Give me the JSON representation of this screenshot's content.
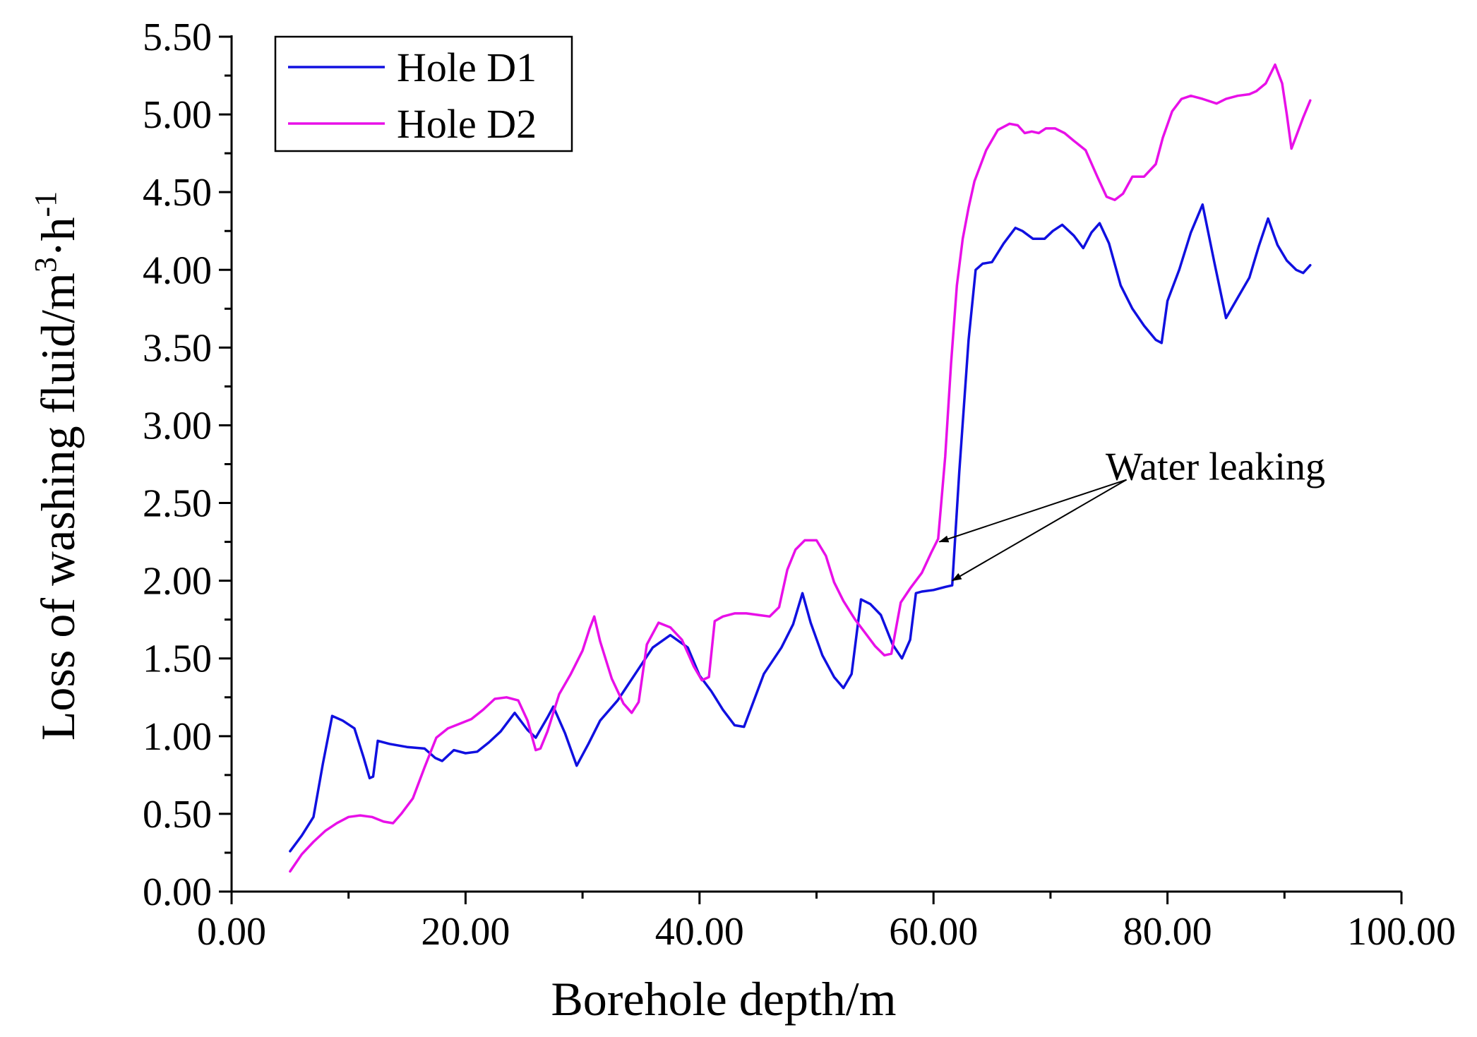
{
  "chart_data": {
    "type": "line",
    "title": "",
    "xlabel": "Borehole depth/m",
    "ylabel": "Loss of washing fluid/m",
    "ylabel_unit_sup1": "3",
    "ylabel_unit_mid": "·h",
    "ylabel_unit_sup2": "-1",
    "xlim": [
      0,
      100
    ],
    "ylim": [
      0,
      5.5
    ],
    "xticks": [
      0,
      20,
      40,
      60,
      80,
      100
    ],
    "xtick_labels": [
      "0.00",
      "20.00",
      "40.00",
      "60.00",
      "80.00",
      "100.00"
    ],
    "yticks": [
      0,
      0.5,
      1,
      1.5,
      2,
      2.5,
      3,
      3.5,
      4,
      4.5,
      5,
      5.5
    ],
    "ytick_labels": [
      "0.00",
      "0.50",
      "1.00",
      "1.50",
      "2.00",
      "2.50",
      "3.00",
      "3.50",
      "4.00",
      "4.50",
      "5.00",
      "5.50"
    ],
    "grid": false,
    "legend_position": "top-left",
    "series": [
      {
        "name": "Hole D1",
        "color": "#1010e0",
        "x": [
          5,
          6,
          7,
          7.8,
          8.6,
          9.5,
          10.5,
          11.3,
          11.8,
          12.1,
          12.5,
          13.5,
          15,
          16.5,
          17.4,
          18,
          19,
          20,
          21,
          22,
          23,
          24.2,
          25.3,
          26,
          27,
          27.5,
          28.5,
          29.5,
          30.5,
          31.5,
          33,
          34.5,
          36,
          37.5,
          39,
          40,
          41,
          42,
          43,
          43.8,
          44.5,
          45.5,
          47,
          48,
          48.8,
          49.5,
          50.5,
          51.5,
          52.3,
          53,
          53.8,
          54.6,
          55.5,
          56.5,
          57.3,
          58,
          58.5,
          59,
          60,
          61,
          61.6,
          62.2,
          63,
          63.6,
          64.2,
          65,
          66,
          67,
          67.6,
          68.5,
          69.5,
          70.2,
          71,
          72,
          72.8,
          73.5,
          74.2,
          75,
          76,
          77,
          78,
          79,
          79.5,
          80,
          81,
          82,
          83,
          84,
          85,
          86,
          87,
          87.8,
          88.6,
          89.4,
          90.2,
          91,
          91.6,
          92.2
        ],
        "y": [
          0.26,
          0.36,
          0.48,
          0.82,
          1.13,
          1.1,
          1.05,
          0.86,
          0.73,
          0.74,
          0.97,
          0.95,
          0.93,
          0.92,
          0.86,
          0.84,
          0.91,
          0.89,
          0.9,
          0.96,
          1.03,
          1.15,
          1.04,
          0.99,
          1.12,
          1.19,
          1.02,
          0.81,
          0.95,
          1.1,
          1.23,
          1.4,
          1.57,
          1.65,
          1.57,
          1.39,
          1.29,
          1.17,
          1.07,
          1.06,
          1.2,
          1.4,
          1.57,
          1.72,
          1.92,
          1.73,
          1.52,
          1.38,
          1.31,
          1.4,
          1.88,
          1.85,
          1.78,
          1.59,
          1.5,
          1.62,
          1.92,
          1.93,
          1.94,
          1.96,
          1.97,
          2.7,
          3.55,
          4.0,
          4.04,
          4.05,
          4.17,
          4.27,
          4.25,
          4.2,
          4.2,
          4.25,
          4.29,
          4.22,
          4.14,
          4.24,
          4.3,
          4.17,
          3.9,
          3.75,
          3.64,
          3.55,
          3.53,
          3.8,
          4.0,
          4.24,
          4.42,
          4.05,
          3.69,
          3.82,
          3.95,
          4.15,
          4.33,
          4.16,
          4.06,
          4.0,
          3.98,
          4.03
        ]
      },
      {
        "name": "Hole D2",
        "color": "#e810e8",
        "x": [
          5,
          6,
          7,
          8,
          9,
          10,
          11,
          12,
          13,
          13.8,
          14.5,
          15.5,
          16.5,
          17.5,
          18.5,
          19.5,
          20.5,
          21.5,
          22.5,
          23.5,
          24.5,
          25.3,
          26,
          26.4,
          27,
          28,
          29,
          30,
          30.6,
          31,
          31.5,
          32.5,
          33.5,
          34.2,
          34.8,
          35.5,
          36.5,
          37.5,
          38.5,
          39.5,
          40.2,
          40.8,
          41.3,
          42,
          43,
          44,
          45,
          46,
          46.8,
          47.5,
          48.2,
          49,
          50,
          50.8,
          51.5,
          52.3,
          53.3,
          54.3,
          55,
          55.8,
          56.4,
          57.2,
          58,
          59,
          59.8,
          60.4,
          61,
          61.5,
          62,
          62.5,
          63,
          63.5,
          64.5,
          65.5,
          66.5,
          67.2,
          67.8,
          68.4,
          69,
          69.6,
          70.4,
          71.2,
          72,
          73,
          74,
          74.8,
          75.5,
          76.2,
          77,
          78,
          79,
          79.6,
          80.4,
          81.2,
          82,
          83,
          84.2,
          85,
          86,
          87,
          87.6,
          88.4,
          89.2,
          89.8,
          90.2,
          90.6,
          91,
          91.6,
          92.2
        ],
        "y": [
          0.13,
          0.24,
          0.32,
          0.39,
          0.44,
          0.48,
          0.49,
          0.48,
          0.45,
          0.44,
          0.5,
          0.6,
          0.8,
          0.99,
          1.05,
          1.08,
          1.11,
          1.17,
          1.24,
          1.25,
          1.23,
          1.1,
          0.91,
          0.92,
          1.03,
          1.27,
          1.4,
          1.55,
          1.69,
          1.77,
          1.61,
          1.37,
          1.21,
          1.15,
          1.22,
          1.59,
          1.73,
          1.7,
          1.62,
          1.45,
          1.36,
          1.38,
          1.74,
          1.77,
          1.79,
          1.79,
          1.78,
          1.77,
          1.83,
          2.07,
          2.2,
          2.26,
          2.26,
          2.16,
          1.99,
          1.87,
          1.75,
          1.65,
          1.58,
          1.52,
          1.53,
          1.86,
          1.95,
          2.05,
          2.18,
          2.27,
          2.8,
          3.4,
          3.9,
          4.2,
          4.4,
          4.57,
          4.77,
          4.9,
          4.94,
          4.93,
          4.88,
          4.89,
          4.88,
          4.91,
          4.91,
          4.88,
          4.83,
          4.77,
          4.6,
          4.47,
          4.45,
          4.49,
          4.6,
          4.6,
          4.68,
          4.85,
          5.02,
          5.1,
          5.12,
          5.1,
          5.07,
          5.1,
          5.12,
          5.13,
          5.15,
          5.2,
          5.32,
          5.2,
          5.0,
          4.78,
          4.86,
          4.98,
          5.09
        ]
      }
    ],
    "annotations": [
      {
        "text": "Water leaking",
        "label_x": 93,
        "label_y": 2.74,
        "arrow_tail": [
          76.5,
          2.65
        ],
        "arrows_to": [
          [
            60.5,
            2.25
          ],
          [
            61.6,
            2.0
          ]
        ]
      }
    ]
  },
  "colors": {
    "axis": "#000000",
    "background": "#ffffff"
  }
}
